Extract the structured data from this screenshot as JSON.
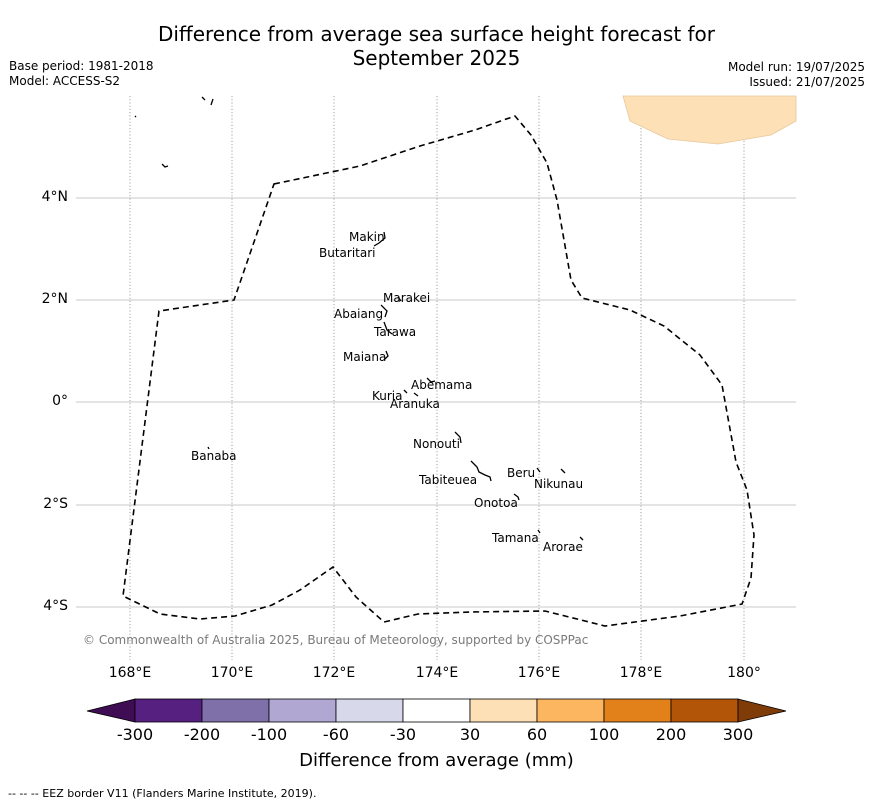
{
  "title_line1": "Difference from average sea surface height forecast for",
  "title_line2": "September 2025",
  "meta": {
    "base_period": "Base period: 1981-2018",
    "model": "Model: ACCESS-S2",
    "model_run": "Model run: 19/07/2025",
    "issued": "Issued: 21/07/2025"
  },
  "axes": {
    "y_labels": [
      "4°N",
      "2°N",
      "0°",
      "2°S",
      "4°S"
    ],
    "x_labels": [
      "168°E",
      "170°E",
      "172°E",
      "174°E",
      "176°E",
      "178°E",
      "180°"
    ]
  },
  "places": [
    {
      "name": "Makin"
    },
    {
      "name": "Butaritari"
    },
    {
      "name": "Marakei"
    },
    {
      "name": "Abaiang"
    },
    {
      "name": "Tarawa"
    },
    {
      "name": "Maiana"
    },
    {
      "name": "Abemama"
    },
    {
      "name": "Kuria"
    },
    {
      "name": "Aranuka"
    },
    {
      "name": "Banaba"
    },
    {
      "name": "Nonouti"
    },
    {
      "name": "Beru"
    },
    {
      "name": "Nikunau"
    },
    {
      "name": "Tabiteuea"
    },
    {
      "name": "Onotoa"
    },
    {
      "name": "Tamana"
    },
    {
      "name": "Arorae"
    }
  ],
  "copyright": "© Commonwealth of Australia 2025, Bureau of Meteorology, supported by COSPPac",
  "colorbar": {
    "title": "Difference from average (mm)",
    "ticks": [
      "-300",
      "-200",
      "-100",
      "-60",
      "-30",
      "30",
      "60",
      "100",
      "200",
      "300"
    ],
    "colors": [
      "#3f0d54",
      "#552080",
      "#8070aa",
      "#b0a8d2",
      "#d8d8eb",
      "#ffffff",
      "#fde0b6",
      "#fdb660",
      "#e2811a",
      "#b25508",
      "#7f3b08"
    ]
  },
  "footnote": "--  --  -- EEZ border V11 (Flanders Marine Institute, 2019)."
}
